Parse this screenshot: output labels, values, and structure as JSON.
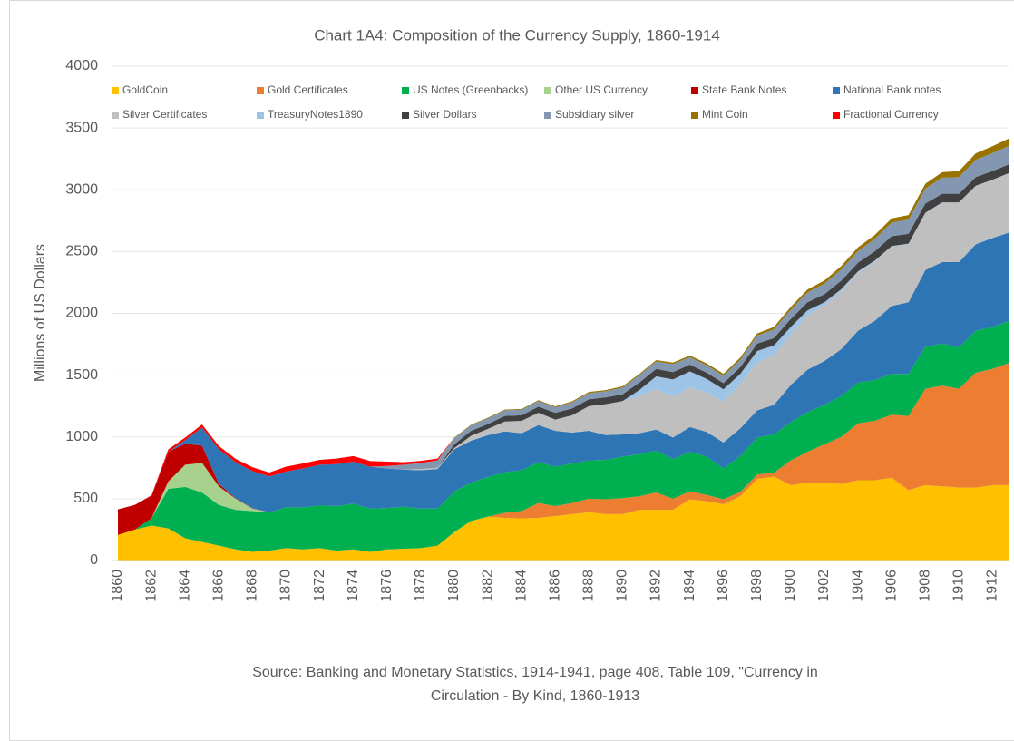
{
  "chart_data": {
    "type": "stacked_area",
    "title": "Chart 1A4: Composition of the Currency Supply, 1860-1914",
    "y_label": "Millions of US Dollars",
    "source_lines": [
      "Source: Banking and Monetary Statistics, 1914-1941, page 408, Table 109, \"Currency in",
      "Circulation - By Kind, 1860-1913"
    ],
    "categories": [
      "1860",
      null,
      "1862",
      null,
      "1864",
      null,
      "1866",
      null,
      "1868",
      null,
      "1870",
      null,
      "1872",
      null,
      "1874",
      null,
      "1876",
      null,
      "1878",
      null,
      "1880",
      null,
      "1882",
      null,
      "1884",
      null,
      "1886",
      null,
      "1888",
      null,
      "1890",
      null,
      "1892",
      null,
      "1894",
      null,
      "1896",
      null,
      "1898",
      null,
      "1900",
      null,
      "1902",
      null,
      "1904",
      null,
      "1906",
      null,
      "1908",
      null,
      "1910",
      null,
      "1912",
      null
    ],
    "ylim": [
      0,
      4000
    ],
    "yticks": [
      0,
      500,
      1000,
      1500,
      2000,
      2500,
      3000,
      3500,
      4000
    ],
    "grid": true,
    "legend": "top",
    "series": [
      {
        "name": "GoldCoin",
        "color": "#ffc000",
        "values": [
          207,
          250,
          283,
          260,
          180,
          150,
          120,
          90,
          70,
          80,
          100,
          90,
          100,
          80,
          90,
          70,
          90,
          95,
          100,
          120,
          230,
          320,
          355,
          345,
          340,
          345,
          360,
          375,
          390,
          375,
          375,
          410,
          410,
          410,
          495,
          480,
          455,
          520,
          660,
          680,
          610,
          630,
          630,
          620,
          650,
          650,
          670,
          570,
          610,
          600,
          590,
          590,
          610,
          610
        ]
      },
      {
        "name": "Gold Certificates",
        "color": "#ed7d31",
        "values": [
          0,
          0,
          0,
          0,
          0,
          0,
          0,
          0,
          0,
          0,
          0,
          0,
          0,
          0,
          0,
          0,
          0,
          0,
          0,
          0,
          0,
          0,
          0,
          40,
          60,
          120,
          80,
          90,
          110,
          120,
          130,
          110,
          140,
          90,
          65,
          50,
          40,
          35,
          35,
          30,
          200,
          250,
          310,
          380,
          460,
          480,
          510,
          600,
          780,
          815,
          800,
          930,
          940,
          990
        ]
      },
      {
        "name": "US Notes (Greenbacks)",
        "color": "#00b050",
        "values": [
          0,
          0,
          60,
          320,
          415,
          400,
          330,
          320,
          330,
          310,
          330,
          340,
          345,
          360,
          370,
          350,
          335,
          340,
          320,
          300,
          330,
          310,
          320,
          330,
          330,
          330,
          320,
          320,
          310,
          320,
          335,
          340,
          340,
          320,
          320,
          310,
          250,
          290,
          300,
          310,
          310,
          320,
          320,
          330,
          330,
          330,
          330,
          340,
          340,
          340,
          335,
          340,
          340,
          340
        ]
      },
      {
        "name": "Other US Currency",
        "color": "#a9d18e",
        "values": [
          0,
          0,
          0,
          60,
          180,
          240,
          150,
          90,
          20,
          0,
          0,
          0,
          0,
          0,
          0,
          0,
          0,
          0,
          0,
          0,
          0,
          0,
          0,
          0,
          0,
          0,
          0,
          0,
          0,
          0,
          0,
          0,
          0,
          0,
          0,
          0,
          0,
          0,
          0,
          0,
          0,
          0,
          0,
          0,
          0,
          0,
          0,
          0,
          0,
          0,
          0,
          0,
          0,
          0
        ]
      },
      {
        "name": "State Bank Notes",
        "color": "#c00000",
        "values": [
          207,
          200,
          180,
          240,
          170,
          140,
          20,
          4,
          3,
          0,
          0,
          0,
          0,
          0,
          0,
          0,
          0,
          0,
          0,
          0,
          0,
          0,
          0,
          0,
          0,
          0,
          0,
          0,
          0,
          0,
          0,
          0,
          0,
          0,
          0,
          0,
          0,
          0,
          0,
          0,
          0,
          0,
          0,
          0,
          0,
          0,
          0,
          0,
          0,
          0,
          0,
          0,
          0,
          0
        ]
      },
      {
        "name": "National Bank notes",
        "color": "#2e75b6",
        "values": [
          0,
          0,
          0,
          0,
          30,
          146,
          280,
          290,
          300,
          290,
          290,
          315,
          330,
          340,
          340,
          340,
          320,
          300,
          310,
          320,
          340,
          340,
          340,
          330,
          300,
          300,
          290,
          250,
          240,
          200,
          180,
          170,
          170,
          175,
          200,
          200,
          210,
          225,
          220,
          240,
          300,
          345,
          355,
          380,
          420,
          480,
          550,
          580,
          620,
          660,
          690,
          700,
          720,
          715
        ]
      },
      {
        "name": "Silver Certificates",
        "color": "#bfbfbf",
        "values": [
          0,
          0,
          0,
          0,
          0,
          0,
          0,
          0,
          0,
          0,
          0,
          0,
          0,
          0,
          0,
          0,
          0,
          0,
          10,
          10,
          10,
          40,
          50,
          80,
          100,
          100,
          90,
          140,
          200,
          250,
          270,
          300,
          330,
          330,
          320,
          320,
          330,
          360,
          390,
          400,
          410,
          440,
          450,
          470,
          470,
          480,
          480,
          470,
          460,
          480,
          480,
          470,
          470,
          480
        ]
      },
      {
        "name": "TreasuryNotes1890",
        "color": "#9dc3e6",
        "values": [
          0,
          0,
          0,
          0,
          0,
          0,
          0,
          0,
          0,
          0,
          0,
          0,
          0,
          0,
          0,
          0,
          0,
          0,
          0,
          0,
          0,
          0,
          0,
          0,
          0,
          0,
          0,
          0,
          0,
          0,
          0,
          50,
          100,
          140,
          130,
          110,
          100,
          80,
          90,
          80,
          60,
          40,
          25,
          15,
          10,
          8,
          5,
          4,
          4,
          3,
          3,
          3,
          2,
          2
        ]
      },
      {
        "name": "Silver Dollars",
        "color": "#404040",
        "values": [
          0,
          0,
          0,
          0,
          0,
          0,
          0,
          0,
          0,
          0,
          0,
          0,
          0,
          0,
          0,
          0,
          0,
          0,
          0,
          0,
          30,
          40,
          40,
          45,
          45,
          50,
          55,
          55,
          55,
          55,
          55,
          60,
          60,
          60,
          55,
          50,
          50,
          55,
          60,
          60,
          65,
          65,
          65,
          70,
          70,
          75,
          80,
          80,
          75,
          70,
          70,
          70,
          70,
          70
        ]
      },
      {
        "name": "Subsidiary silver",
        "color": "#8497b0",
        "values": [
          0,
          0,
          0,
          0,
          0,
          0,
          0,
          0,
          0,
          0,
          0,
          0,
          0,
          0,
          0,
          0,
          20,
          40,
          50,
          60,
          50,
          45,
          45,
          45,
          45,
          45,
          45,
          50,
          50,
          50,
          55,
          60,
          60,
          65,
          60,
          60,
          60,
          60,
          65,
          70,
          75,
          80,
          85,
          90,
          95,
          100,
          110,
          115,
          120,
          130,
          135,
          140,
          145,
          150
        ]
      },
      {
        "name": "Mint Coin",
        "color": "#997300",
        "values": [
          0,
          0,
          0,
          0,
          0,
          0,
          0,
          0,
          0,
          0,
          0,
          0,
          0,
          0,
          0,
          0,
          0,
          0,
          0,
          0,
          5,
          5,
          6,
          6,
          7,
          7,
          8,
          8,
          9,
          9,
          10,
          10,
          12,
          12,
          14,
          15,
          16,
          17,
          18,
          20,
          22,
          24,
          26,
          28,
          30,
          32,
          34,
          36,
          40,
          44,
          48,
          52,
          56,
          60
        ]
      },
      {
        "name": "Fractional Currency",
        "color": "#ff0000",
        "values": [
          0,
          0,
          5,
          20,
          20,
          25,
          27,
          28,
          32,
          32,
          40,
          40,
          40,
          45,
          45,
          45,
          35,
          20,
          16,
          15,
          0,
          0,
          0,
          0,
          0,
          0,
          0,
          0,
          0,
          0,
          0,
          0,
          0,
          0,
          0,
          0,
          0,
          0,
          0,
          0,
          0,
          0,
          0,
          0,
          0,
          0,
          0,
          0,
          0,
          0,
          0,
          0,
          0,
          0
        ]
      }
    ]
  }
}
